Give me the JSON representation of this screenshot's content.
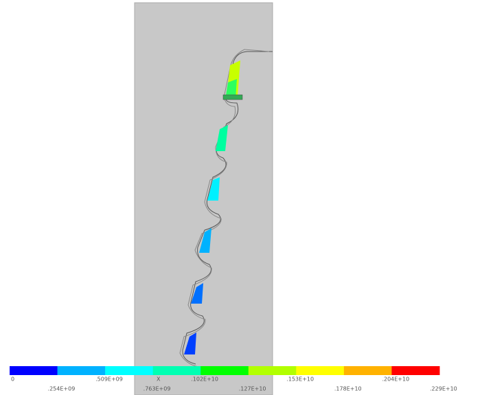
{
  "legend": {
    "colors": [
      "#0000ff",
      "#00b2ff",
      "#00ffff",
      "#00ffb2",
      "#00ff00",
      "#b2ff00",
      "#ffff00",
      "#ffb200",
      "#ff0000"
    ],
    "labels": [
      "0",
      ".254E+09",
      ".509E+09",
      ".763E+09",
      ".102E+10",
      ".127E+10",
      ".153E+10",
      ".178E+10",
      ".204E+10",
      ".229E+10"
    ]
  },
  "triad_label": "X"
}
